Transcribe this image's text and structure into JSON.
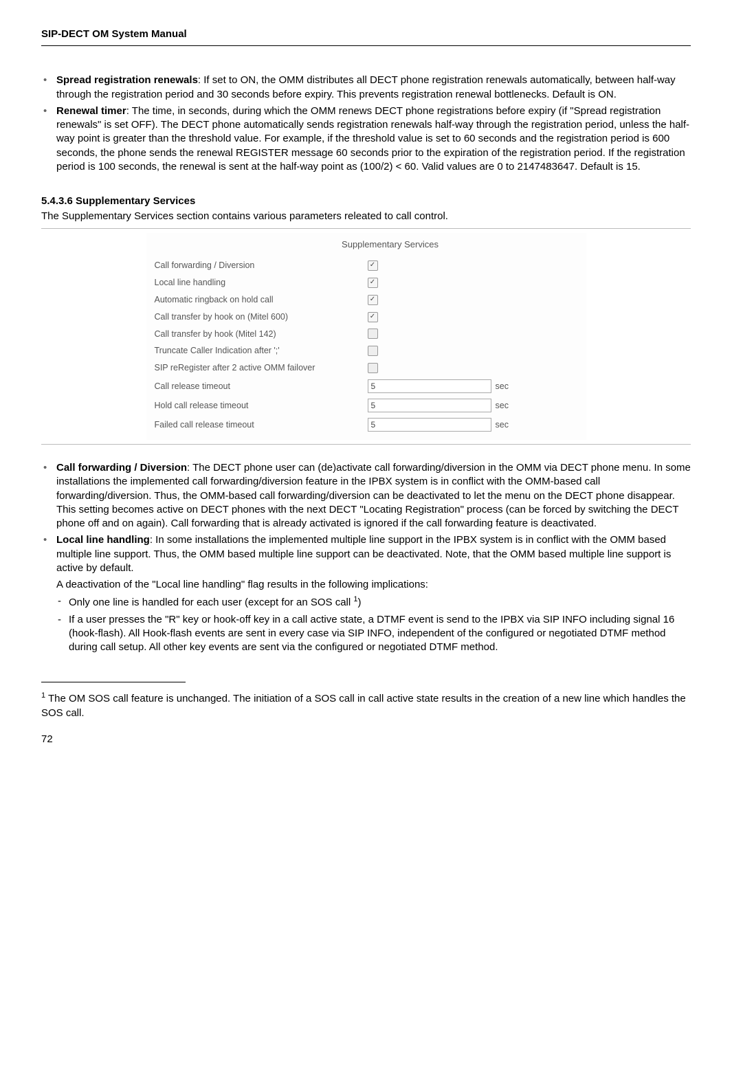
{
  "header": {
    "title": "SIP-DECT OM System Manual"
  },
  "top_bullets": [
    {
      "lead": "Spread registration renewals",
      "rest": ": If set to ON, the OMM distributes all DECT phone  registration renewals automatically, between half-way through the registration period and 30 seconds before expiry. This prevents registration renewal bottlenecks. Default is ON."
    },
    {
      "lead": "Renewal timer",
      "rest": ": The time, in seconds, during which the OMM renews DECT phone registrations before expiry (if \"Spread registration renewals\" is set OFF). The DECT phone automatically sends registration renewals half-way through the registration period, unless the half-way point is greater than the threshold value. For example, if the threshold value is set to 60 seconds and the registration period is 600 seconds, the phone sends the renewal REGISTER message 60 seconds prior to the expiration of the registration period. If the registration period is 100 seconds, the renewal is sent at the half-way point as (100/2) < 60. Valid values are 0 to 2147483647. Default is 15."
    }
  ],
  "section": {
    "number": "5.4.3.6",
    "title": "Supplementary Services",
    "intro": "The Supplementary Services section contains various parameters releated to call control."
  },
  "form": {
    "heading": "Supplementary Services",
    "rows": [
      {
        "label": "Call forwarding / Diversion",
        "type": "checkbox",
        "checked": true
      },
      {
        "label": "Local line handling",
        "type": "checkbox",
        "checked": true
      },
      {
        "label": "Automatic ringback on hold call",
        "type": "checkbox",
        "checked": true
      },
      {
        "label": "Call transfer by hook on (Mitel 600)",
        "type": "checkbox",
        "checked": true
      },
      {
        "label": "Call transfer by hook (Mitel 142)",
        "type": "checkbox",
        "checked": false
      },
      {
        "label": "Truncate Caller Indication after ';'",
        "type": "checkbox",
        "checked": false
      },
      {
        "label": "SIP reRegister after 2 active OMM failover",
        "type": "checkbox",
        "checked": false
      },
      {
        "label": "Call release timeout",
        "type": "text",
        "value": "5",
        "unit": "sec"
      },
      {
        "label": "Hold call release timeout",
        "type": "text",
        "value": "5",
        "unit": "sec"
      },
      {
        "label": "Failed call release timeout",
        "type": "text",
        "value": "5",
        "unit": "sec"
      }
    ]
  },
  "bottom_bullets": {
    "b1_lead": "Call forwarding / Diversion",
    "b1_rest": ": The DECT phone user can (de)activate call forwarding/diversion in the OMM via DECT phone menu. In some installations the implemented call forwarding/diversion feature in the IPBX system is in conflict with the OMM-based call forwarding/diversion. Thus, the OMM-based call forwarding/diversion can be deactivated to let the menu on the DECT phone disappear. This setting becomes active on DECT phones with the next DECT \"Locating Registration\" process (can be forced by switching the DECT phone off and on again). Call forwarding that is already activated is ignored if the call forwarding feature is deactivated.",
    "b2_lead": "Local line handling",
    "b2_rest": ": In some installations the implemented multiple line support in the IPBX system is in conflict with the OMM based multiple line support. Thus, the OMM based multiple line support can be deactivated. Note, that the OMM based multiple line support is active by default.",
    "b2_sub": "A deactivation of the \"Local line handling\" flag results in the following implications:",
    "dash1_pre": "Only one line is handled for each user (except for an SOS call ",
    "dash1_sup": "1",
    "dash1_post": ")",
    "dash2": "If a user presses the \"R\" key or hook-off key in a call active state, a DTMF event is send to the IPBX via SIP INFO including signal 16 (hook-flash). All Hook-flash events are sent in every case via SIP INFO, independent of the configured or negotiated DTMF method during call setup. All other key events are sent via the configured or negotiated DTMF method."
  },
  "footnote": {
    "marker": "1",
    "text": " The OM SOS call feature is unchanged. The initiation of a SOS call in call active state results in the creation of a new line which handles the SOS call."
  },
  "page_number": "72"
}
